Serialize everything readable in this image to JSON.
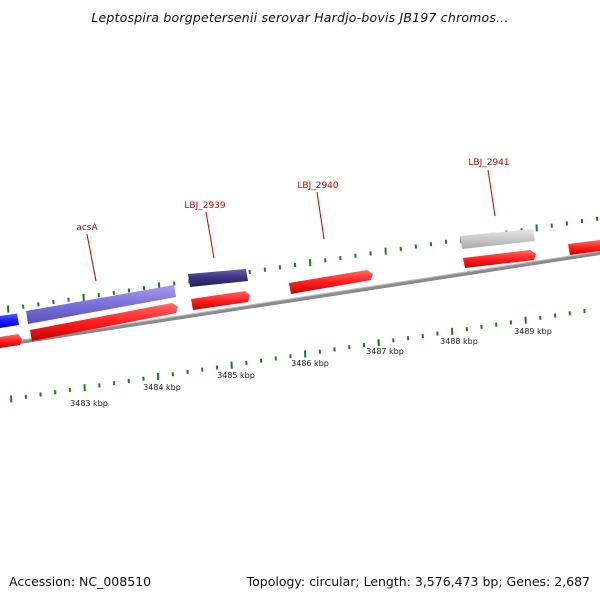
{
  "title": "Leptospira borgpetersenii serovar Hardjo-bovis JB197 chromos...",
  "footer": {
    "accession": "Accession: NC_008510",
    "stats": "Topology: circular; Length: 3,576,473 bp; Genes: 2,687"
  },
  "ruler": {
    "unit": "kbp",
    "labels": [
      {
        "kbp": 3483,
        "text": "3483 kbp"
      },
      {
        "kbp": 3484,
        "text": "3484 kbp"
      },
      {
        "kbp": 3485,
        "text": "3485 kbp"
      },
      {
        "kbp": 3486,
        "text": "3486 kbp"
      },
      {
        "kbp": 3487,
        "text": "3487 kbp"
      },
      {
        "kbp": 3488,
        "text": "3488 kbp"
      },
      {
        "kbp": 3489,
        "text": "3489 kbp"
      }
    ]
  },
  "gene_labels": [
    {
      "name": "acsA",
      "color": "#cc0000"
    },
    {
      "name": "LBJ_2939",
      "color": "#cc0000"
    },
    {
      "name": "LBJ_2940",
      "color": "#cc0000"
    },
    {
      "name": "LBJ_2941",
      "color": "#cc0000"
    }
  ],
  "colors": {
    "cds": "#ff1f1f",
    "gene_light_blue": "#7b6fd9",
    "gene_dark_blue": "#3a3280",
    "gene_blue": "#1a1aff",
    "gene_grey": "#c9c9c9",
    "backbone": "#8a8a8a",
    "ticks": "#1b7d1b"
  }
}
